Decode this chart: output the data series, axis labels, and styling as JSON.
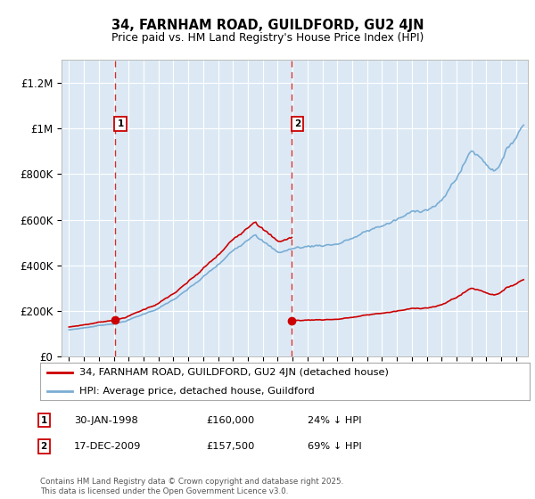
{
  "title1": "34, FARNHAM ROAD, GUILDFORD, GU2 4JN",
  "title2": "Price paid vs. HM Land Registry's House Price Index (HPI)",
  "ylim": [
    0,
    1300000
  ],
  "yticks": [
    0,
    200000,
    400000,
    600000,
    800000,
    1000000,
    1200000
  ],
  "ytick_labels": [
    "£0",
    "£200K",
    "£400K",
    "£600K",
    "£800K",
    "£1M",
    "£1.2M"
  ],
  "plot_bg_color": "#dce9f5",
  "sale1_year": 1998.08,
  "sale1_price": 160000,
  "sale2_year": 2009.96,
  "sale2_price": 157500,
  "legend_label_red": "34, FARNHAM ROAD, GUILDFORD, GU2 4JN (detached house)",
  "legend_label_blue": "HPI: Average price, detached house, Guildford",
  "footer_text": "Contains HM Land Registry data © Crown copyright and database right 2025.\nThis data is licensed under the Open Government Licence v3.0.",
  "table_rows": [
    {
      "num": "1",
      "date": "30-JAN-1998",
      "price": "£160,000",
      "hpi": "24% ↓ HPI"
    },
    {
      "num": "2",
      "date": "17-DEC-2009",
      "price": "£157,500",
      "hpi": "69% ↓ HPI"
    }
  ],
  "red_color": "#cc0000",
  "blue_color": "#7aadd4",
  "grid_color": "#ffffff",
  "border_color": "#bbbbbb",
  "xlim_left": 1994.5,
  "xlim_right": 2025.8
}
